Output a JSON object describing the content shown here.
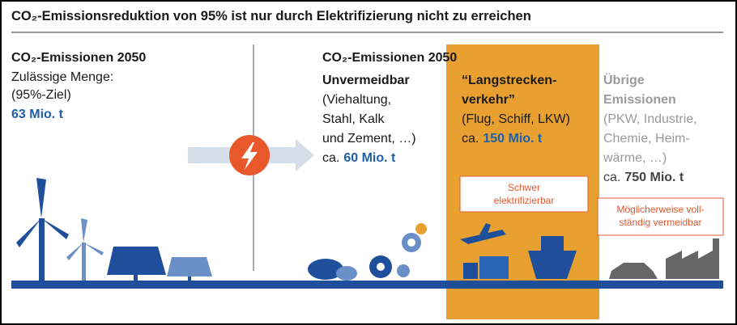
{
  "header": {
    "title": "CO₂-Emissionsreduktion von 95% ist nur durch Elektrifizierung nicht zu erreichen"
  },
  "left": {
    "heading": "CO₂-Emissionen 2050",
    "lines": [
      "Zulässige Menge:",
      "(95%-Ziel)"
    ],
    "amount": "63 Mio. t"
  },
  "right": {
    "heading": "CO₂-Emissionen 2050",
    "columns": [
      {
        "title_lines": [
          "Unvermeidbar"
        ],
        "lines": [
          "(Viehaltung,",
          "Stahl, Kalk",
          "und Zement, …)"
        ],
        "prefix": "ca.",
        "amount": "60 Mio. t"
      },
      {
        "title_lines": [
          "“Langstrecken-",
          "verkehr”"
        ],
        "lines": [
          "(Flug, Schiff, LKW)"
        ],
        "prefix": "ca.",
        "amount": "150 Mio. t",
        "note_lines": [
          "Schwer",
          "elektrifizierbar"
        ]
      },
      {
        "title_lines": [
          "Übrige",
          "Emissionen"
        ],
        "lines": [
          "(PKW, Industrie,",
          "Chemie, Heim-",
          "wärme, …)"
        ],
        "prefix": "ca.",
        "amount": "750 Mio. t",
        "note_lines": [
          "Möglicherweise voll-",
          "ständig vermeidbar"
        ]
      }
    ]
  }
}
